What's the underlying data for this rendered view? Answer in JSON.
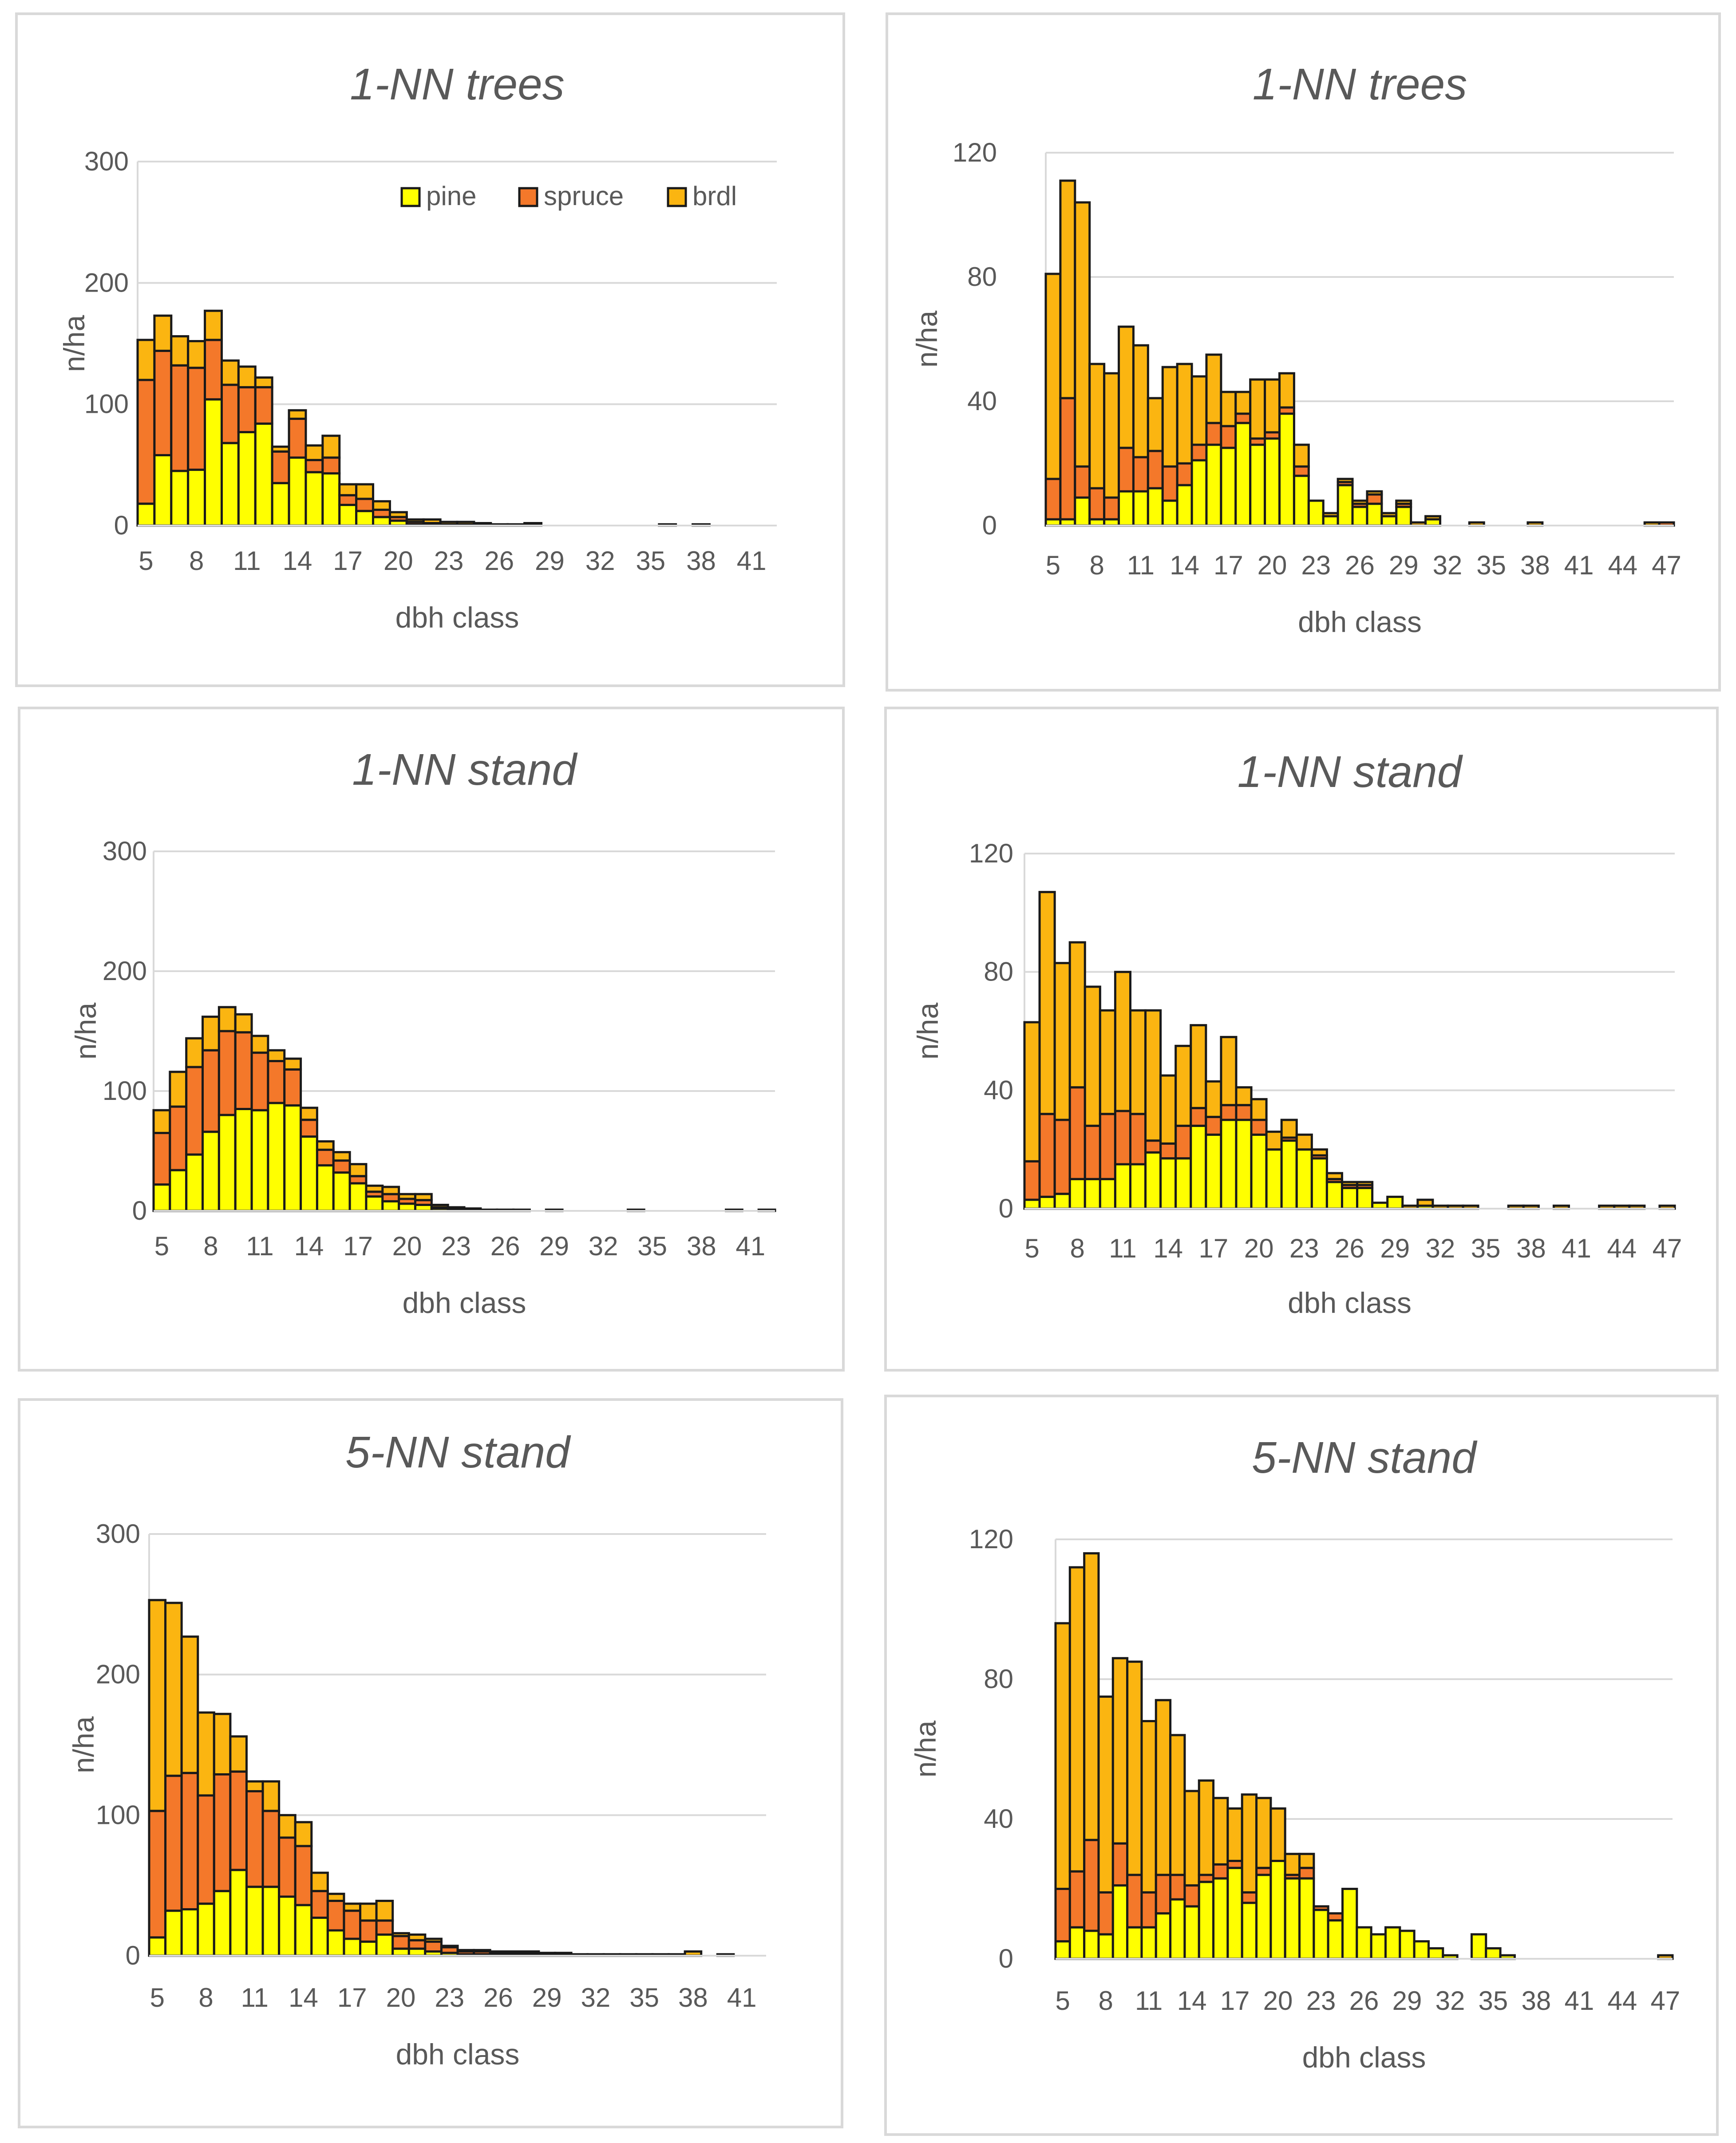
{
  "colors": {
    "pine": "#ffff00",
    "spruce": "#f4782a",
    "brdl": "#fbb511",
    "grid": "#d9d9d9",
    "text": "#595959",
    "stroke": "#1a1a1a"
  },
  "chart_data": [
    {
      "type": "bar",
      "stacked": true,
      "panel_id": "a",
      "title": "1-NN trees",
      "xlabel": "dbh class",
      "ylabel": "n/ha",
      "ylim": [
        0,
        300
      ],
      "yticks": [
        0,
        100,
        200,
        300
      ],
      "x_start": 5,
      "x_end": 42,
      "xtick_labels": [
        "5",
        "8",
        "11",
        "14",
        "17",
        "20",
        "23",
        "26",
        "29",
        "32",
        "35",
        "38",
        "41"
      ],
      "legend": {
        "position": "top-right",
        "items": [
          "pine",
          "spruce",
          "brdl"
        ]
      },
      "series": [
        {
          "name": "pine",
          "values": [
            18,
            58,
            45,
            46,
            104,
            68,
            77,
            84,
            35,
            56,
            44,
            43,
            17,
            12,
            7,
            4,
            1,
            1,
            0,
            0,
            0,
            0,
            0,
            0,
            0,
            0,
            0,
            0,
            0,
            0,
            0,
            0,
            0,
            0,
            0,
            0,
            0,
            0
          ]
        },
        {
          "name": "spruce",
          "values": [
            102,
            86,
            87,
            84,
            49,
            48,
            37,
            30,
            26,
            32,
            10,
            13,
            8,
            10,
            6,
            3,
            2,
            1,
            1,
            1,
            1,
            1,
            0,
            1,
            0,
            0,
            0,
            0,
            0,
            0,
            0,
            0,
            0,
            0,
            0,
            0,
            0,
            0
          ]
        },
        {
          "name": "brdl",
          "values": [
            33,
            29,
            24,
            22,
            24,
            20,
            17,
            8,
            4,
            7,
            12,
            18,
            9,
            12,
            7,
            4,
            2,
            3,
            2,
            2,
            1,
            0,
            1,
            1,
            0,
            0,
            0,
            0,
            0,
            0,
            0,
            1,
            0,
            1,
            0,
            0,
            0,
            0
          ]
        }
      ]
    },
    {
      "type": "bar",
      "stacked": true,
      "panel_id": "b",
      "title": "1-NN trees",
      "xlabel": "dbh class",
      "ylabel": "n/ha",
      "ylim": [
        0,
        120
      ],
      "yticks": [
        0,
        40,
        80,
        120
      ],
      "x_start": 5,
      "x_end": 47,
      "xtick_labels": [
        "5",
        "8",
        "11",
        "14",
        "17",
        "20",
        "23",
        "26",
        "29",
        "32",
        "35",
        "38",
        "41",
        "44",
        "47"
      ],
      "series": [
        {
          "name": "pine",
          "values": [
            2,
            2,
            9,
            2,
            2,
            11,
            11,
            12,
            8,
            13,
            21,
            26,
            25,
            33,
            26,
            28,
            36,
            16,
            8,
            3,
            13,
            6,
            7,
            3,
            6,
            0,
            2,
            0,
            0,
            0,
            0,
            0,
            0,
            0,
            0,
            0,
            0,
            0,
            0,
            0,
            0,
            0,
            0
          ]
        },
        {
          "name": "spruce",
          "values": [
            13,
            39,
            10,
            10,
            7,
            14,
            11,
            12,
            11,
            7,
            5,
            7,
            7,
            3,
            2,
            2,
            2,
            3,
            0,
            0,
            1,
            1,
            3,
            0,
            1,
            0,
            0,
            0,
            0,
            0,
            0,
            0,
            0,
            0,
            0,
            0,
            0,
            0,
            0,
            0,
            0,
            0,
            1
          ]
        },
        {
          "name": "brdl",
          "values": [
            66,
            70,
            85,
            40,
            40,
            39,
            36,
            17,
            32,
            32,
            22,
            22,
            11,
            7,
            19,
            17,
            11,
            7,
            0,
            1,
            1,
            1,
            1,
            1,
            1,
            1,
            1,
            0,
            0,
            1,
            0,
            0,
            0,
            1,
            0,
            0,
            0,
            0,
            0,
            0,
            0,
            1,
            0
          ]
        }
      ]
    },
    {
      "type": "bar",
      "stacked": true,
      "panel_id": "c",
      "title": "1-NN stand",
      "xlabel": "dbh class",
      "ylabel": "n/ha",
      "ylim": [
        0,
        300
      ],
      "yticks": [
        0,
        100,
        200,
        300
      ],
      "x_start": 5,
      "x_end": 42,
      "xtick_labels": [
        "5",
        "8",
        "11",
        "14",
        "17",
        "20",
        "23",
        "26",
        "29",
        "32",
        "35",
        "38",
        "41"
      ],
      "series": [
        {
          "name": "pine",
          "values": [
            22,
            34,
            47,
            66,
            80,
            85,
            84,
            90,
            88,
            62,
            38,
            32,
            23,
            12,
            8,
            6,
            5,
            2,
            1,
            1,
            0,
            0,
            0,
            0,
            0,
            0,
            0,
            0,
            0,
            0,
            0,
            0,
            0,
            0,
            0,
            0,
            0,
            0
          ]
        },
        {
          "name": "spruce",
          "values": [
            43,
            53,
            73,
            68,
            70,
            64,
            48,
            35,
            30,
            14,
            13,
            10,
            6,
            4,
            6,
            4,
            4,
            1,
            1,
            0,
            0,
            0,
            0,
            0,
            0,
            0,
            0,
            0,
            0,
            0,
            0,
            0,
            0,
            0,
            0,
            0,
            0,
            0
          ]
        },
        {
          "name": "brdl",
          "values": [
            19,
            29,
            24,
            28,
            20,
            15,
            14,
            9,
            9,
            10,
            7,
            7,
            10,
            5,
            6,
            4,
            5,
            2,
            1,
            1,
            1,
            1,
            1,
            0,
            1,
            0,
            0,
            0,
            0,
            1,
            0,
            0,
            0,
            0,
            0,
            1,
            0,
            1
          ]
        }
      ]
    },
    {
      "type": "bar",
      "stacked": true,
      "panel_id": "d",
      "title": "1-NN stand",
      "xlabel": "dbh class",
      "ylabel": "n/ha",
      "ylim": [
        0,
        120
      ],
      "yticks": [
        0,
        40,
        80,
        120
      ],
      "x_start": 5,
      "x_end": 47,
      "xtick_labels": [
        "5",
        "8",
        "11",
        "14",
        "17",
        "20",
        "23",
        "26",
        "29",
        "32",
        "35",
        "38",
        "41",
        "44",
        "47"
      ],
      "series": [
        {
          "name": "pine",
          "values": [
            3,
            4,
            5,
            10,
            10,
            10,
            15,
            15,
            19,
            17,
            17,
            28,
            25,
            30,
            30,
            25,
            20,
            23,
            20,
            17,
            9,
            7,
            7,
            2,
            4,
            0,
            1,
            0,
            0,
            0,
            0,
            0,
            0,
            0,
            0,
            0,
            0,
            0,
            0,
            0,
            0,
            0,
            0
          ]
        },
        {
          "name": "spruce",
          "values": [
            13,
            28,
            25,
            31,
            18,
            22,
            18,
            17,
            4,
            5,
            11,
            6,
            6,
            5,
            5,
            5,
            0,
            1,
            0,
            1,
            1,
            1,
            1,
            0,
            0,
            0,
            0,
            0,
            0,
            0,
            0,
            0,
            0,
            0,
            0,
            0,
            0,
            0,
            0,
            0,
            0,
            0,
            0
          ]
        },
        {
          "name": "brdl",
          "values": [
            47,
            75,
            53,
            49,
            47,
            35,
            47,
            35,
            44,
            23,
            27,
            28,
            12,
            23,
            6,
            7,
            6,
            6,
            5,
            2,
            2,
            1,
            1,
            0,
            0,
            1,
            2,
            1,
            1,
            1,
            0,
            0,
            1,
            1,
            0,
            1,
            0,
            0,
            1,
            1,
            1,
            0,
            1
          ]
        }
      ]
    },
    {
      "type": "bar",
      "stacked": true,
      "panel_id": "e",
      "title": "5-NN stand",
      "xlabel": "dbh class",
      "ylabel": "n/ha",
      "ylim": [
        0,
        300
      ],
      "yticks": [
        0,
        100,
        200,
        300
      ],
      "x_start": 5,
      "x_end": 42,
      "xtick_labels": [
        "5",
        "8",
        "11",
        "14",
        "17",
        "20",
        "23",
        "26",
        "29",
        "32",
        "35",
        "38",
        "41"
      ],
      "series": [
        {
          "name": "pine",
          "values": [
            13,
            32,
            33,
            37,
            46,
            61,
            49,
            49,
            42,
            36,
            27,
            18,
            12,
            10,
            15,
            5,
            5,
            3,
            2,
            1,
            1,
            1,
            1,
            1,
            0,
            0,
            0,
            0,
            0,
            0,
            0,
            0,
            0,
            0,
            0,
            0,
            0,
            0
          ]
        },
        {
          "name": "spruce",
          "values": [
            90,
            96,
            97,
            77,
            83,
            70,
            68,
            54,
            42,
            42,
            19,
            21,
            20,
            15,
            10,
            9,
            6,
            7,
            4,
            2,
            2,
            1,
            1,
            1,
            1,
            1,
            0,
            0,
            0,
            0,
            0,
            0,
            0,
            0,
            0,
            0,
            0,
            0
          ]
        },
        {
          "name": "brdl",
          "values": [
            150,
            123,
            97,
            59,
            43,
            25,
            7,
            21,
            16,
            17,
            13,
            5,
            5,
            12,
            14,
            2,
            4,
            2,
            1,
            1,
            1,
            1,
            1,
            1,
            1,
            1,
            1,
            1,
            1,
            1,
            1,
            1,
            1,
            3,
            0,
            1,
            0,
            0
          ]
        }
      ]
    },
    {
      "type": "bar",
      "stacked": true,
      "panel_id": "f",
      "title": "5-NN stand",
      "xlabel": "dbh class",
      "ylabel": "n/ha",
      "ylim": [
        0,
        120
      ],
      "yticks": [
        0,
        40,
        80,
        120
      ],
      "x_start": 5,
      "x_end": 47,
      "xtick_labels": [
        "5",
        "8",
        "11",
        "14",
        "17",
        "20",
        "23",
        "26",
        "29",
        "32",
        "35",
        "38",
        "41",
        "44",
        "47"
      ],
      "series": [
        {
          "name": "pine",
          "values": [
            5,
            9,
            8,
            7,
            21,
            9,
            9,
            13,
            17,
            15,
            22,
            23,
            26,
            16,
            24,
            28,
            23,
            23,
            14,
            11,
            20,
            9,
            7,
            9,
            8,
            5,
            3,
            1,
            0,
            7,
            3,
            1,
            0,
            0,
            0,
            0,
            0,
            0,
            0,
            0,
            0,
            0,
            0
          ]
        },
        {
          "name": "spruce",
          "values": [
            15,
            16,
            26,
            12,
            12,
            15,
            10,
            11,
            7,
            6,
            2,
            4,
            2,
            3,
            2,
            0,
            1,
            3,
            1,
            2,
            0,
            0,
            0,
            0,
            0,
            0,
            0,
            0,
            0,
            0,
            0,
            0,
            0,
            0,
            0,
            0,
            0,
            0,
            0,
            0,
            0,
            0,
            0
          ]
        },
        {
          "name": "brdl",
          "values": [
            76,
            87,
            82,
            56,
            53,
            61,
            49,
            50,
            40,
            27,
            27,
            19,
            15,
            28,
            20,
            15,
            6,
            4,
            0,
            0,
            0,
            0,
            0,
            0,
            0,
            0,
            0,
            0,
            0,
            0,
            0,
            0,
            0,
            0,
            0,
            0,
            0,
            0,
            0,
            0,
            0,
            0,
            1
          ]
        }
      ]
    }
  ]
}
